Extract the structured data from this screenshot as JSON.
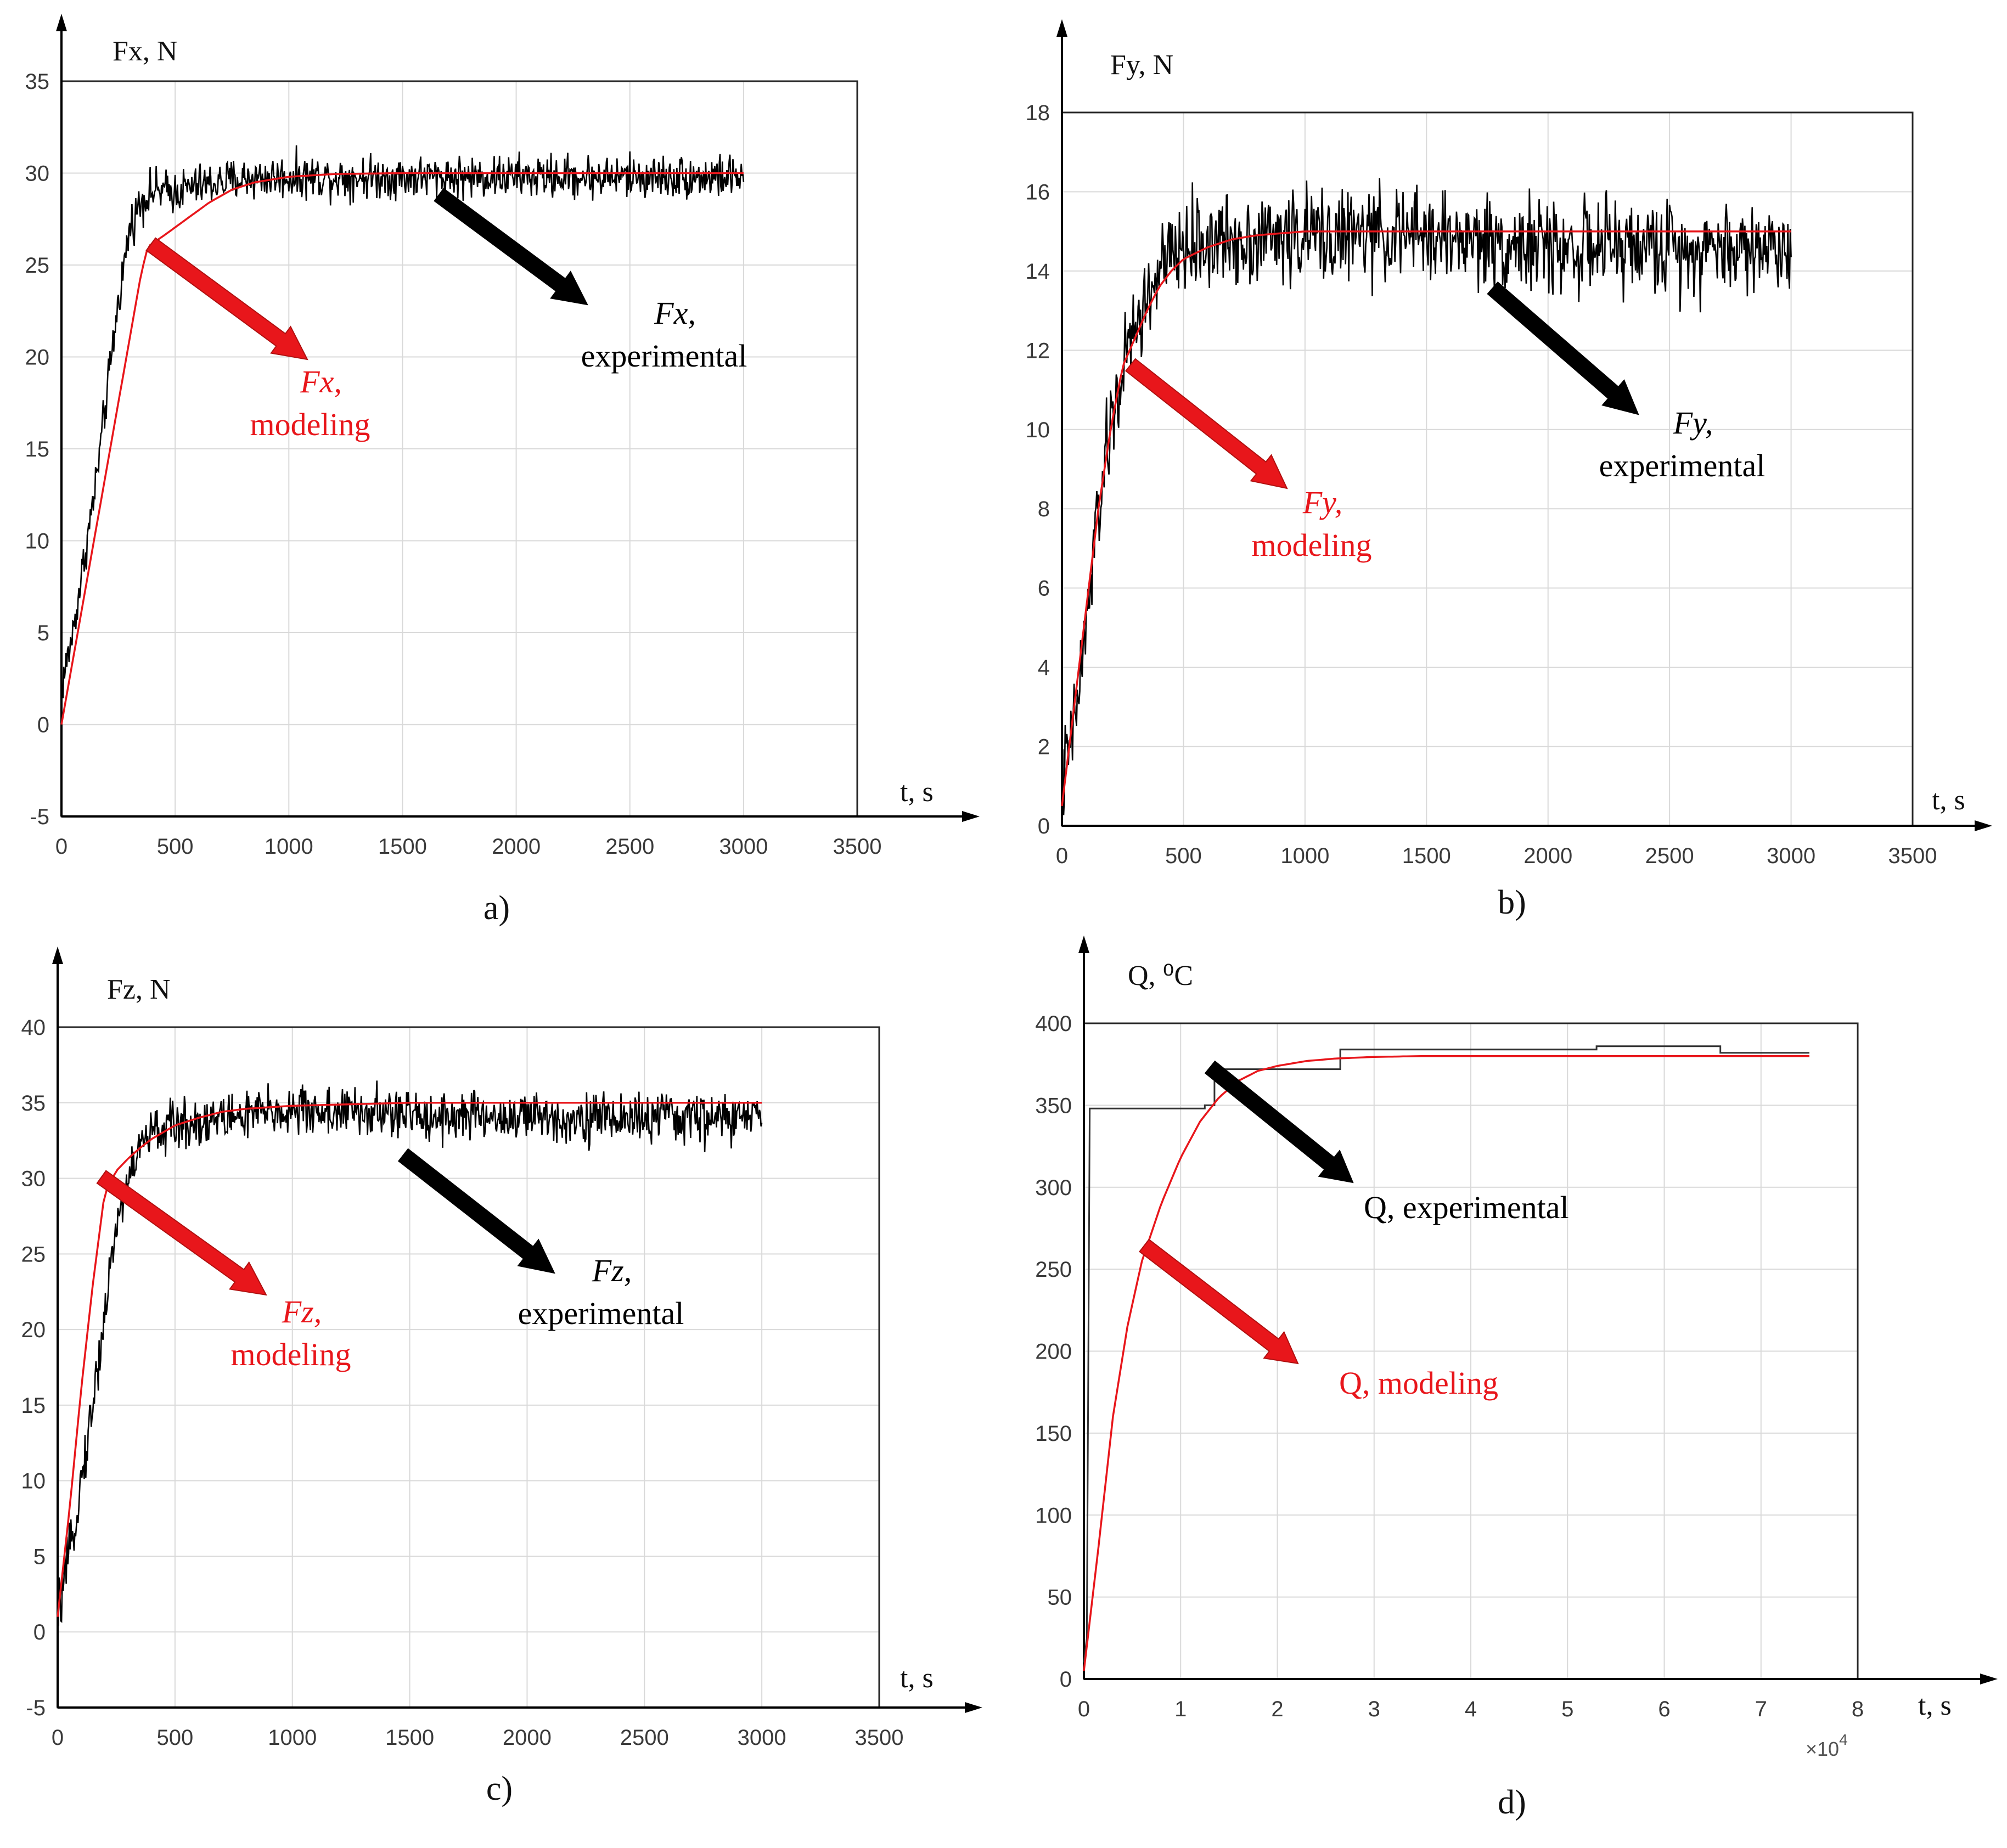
{
  "colors": {
    "experimental": "#000000",
    "modeling": "#e8161b",
    "grid": "#d9d9d9",
    "frame": "#262626",
    "tick_text": "#3a3a3a"
  },
  "chart_data": [
    {
      "panel": "a)",
      "type": "line",
      "ylabel": "Fx, N",
      "xlabel": "t, s",
      "xlim": [
        0,
        3500
      ],
      "ylim": [
        -5,
        35
      ],
      "xticks": [
        0,
        500,
        1000,
        1500,
        2000,
        2500,
        3000,
        3500
      ],
      "yticks": [
        -5,
        0,
        5,
        10,
        15,
        20,
        25,
        30,
        35
      ],
      "grid": true,
      "series": [
        {
          "name": "Fx, experimental",
          "kind": "noisy",
          "x": [
            0,
            50,
            100,
            150,
            200,
            250,
            300,
            350,
            400,
            500,
            600,
            700,
            800,
            1000,
            1500,
            2000,
            2500,
            3000
          ],
          "y": [
            2,
            5,
            9,
            13,
            18,
            23,
            27,
            28.5,
            29,
            29,
            29.3,
            29.5,
            29.7,
            29.8,
            29.8,
            29.8,
            29.8,
            29.8
          ],
          "noise": 0.9
        },
        {
          "name": "Fx, modeling",
          "kind": "smooth",
          "x": [
            0,
            50,
            100,
            150,
            200,
            250,
            300,
            350,
            380,
            450,
            550,
            650,
            750,
            850,
            1000,
            1200,
            1500,
            2000,
            2500,
            3000
          ],
          "y": [
            0,
            3.5,
            7,
            10.5,
            14,
            17.5,
            21,
            24.5,
            26,
            26.6,
            27.5,
            28.4,
            29.1,
            29.5,
            29.8,
            29.95,
            30,
            30,
            30,
            30
          ]
        }
      ],
      "annotations": [
        {
          "lines": [
            "Fx,",
            "experimental"
          ],
          "italic_first": true,
          "color": "#000000"
        },
        {
          "lines": [
            "Fx,",
            "modeling"
          ],
          "italic_first": true,
          "color": "#e8161b"
        }
      ],
      "caption": "a)"
    },
    {
      "panel": "b)",
      "type": "line",
      "ylabel": "Fy, N",
      "xlabel": "t, s",
      "xlim": [
        0,
        3500
      ],
      "ylim": [
        0,
        18
      ],
      "xticks": [
        0,
        500,
        1000,
        1500,
        2000,
        2500,
        3000,
        3500
      ],
      "yticks": [
        0,
        2,
        4,
        6,
        8,
        10,
        12,
        14,
        16,
        18
      ],
      "grid": true,
      "series": [
        {
          "name": "Fy, experimental",
          "kind": "noisy",
          "x": [
            0,
            50,
            100,
            150,
            200,
            250,
            300,
            400,
            500,
            700,
            1000,
            1500,
            2000,
            2500,
            3000
          ],
          "y": [
            1,
            2.5,
            5,
            8,
            10,
            11.5,
            12.5,
            14,
            14.6,
            14.8,
            14.9,
            14.9,
            14.6,
            14.6,
            14.6
          ],
          "noise": 0.9
        },
        {
          "name": "Fy, modeling",
          "kind": "smooth",
          "x": [
            0,
            50,
            100,
            150,
            200,
            250,
            300,
            350,
            400,
            450,
            500,
            600,
            700,
            800,
            1000,
            1500,
            2000,
            2500,
            3000
          ],
          "y": [
            0.5,
            3,
            5.5,
            8,
            10,
            11.6,
            12.3,
            13,
            13.6,
            14,
            14.3,
            14.6,
            14.8,
            14.9,
            15,
            15,
            15,
            15,
            15
          ]
        }
      ],
      "annotations": [
        {
          "lines": [
            "Fy,",
            "experimental"
          ],
          "italic_first": true,
          "color": "#000000"
        },
        {
          "lines": [
            "Fy,",
            "modeling"
          ],
          "italic_first": true,
          "color": "#e8161b"
        }
      ],
      "caption": "b)"
    },
    {
      "panel": "c)",
      "type": "line",
      "ylabel": "Fz, N",
      "xlabel": "t, s",
      "xlim": [
        0,
        3500
      ],
      "ylim": [
        -5,
        40
      ],
      "xticks": [
        0,
        500,
        1000,
        1500,
        2000,
        2500,
        3000,
        3500
      ],
      "yticks": [
        -5,
        0,
        5,
        10,
        15,
        20,
        25,
        30,
        35,
        40
      ],
      "grid": true,
      "series": [
        {
          "name": "Fz, experimental",
          "kind": "noisy",
          "x": [
            0,
            50,
            100,
            150,
            200,
            250,
            300,
            350,
            400,
            500,
            700,
            1000,
            1500,
            2000,
            2500,
            3000
          ],
          "y": [
            1,
            5,
            10,
            15,
            21,
            27,
            30,
            32,
            33,
            33.5,
            34,
            34.5,
            34.2,
            34,
            34,
            34
          ],
          "noise": 1.3
        },
        {
          "name": "Fz, modeling",
          "kind": "smooth",
          "x": [
            0,
            50,
            100,
            150,
            200,
            250,
            300,
            350,
            400,
            500,
            600,
            700,
            800,
            1000,
            1500,
            2000,
            2500,
            3000
          ],
          "y": [
            1,
            8,
            16,
            23,
            29,
            30.5,
            31.3,
            32,
            32.6,
            33.5,
            34,
            34.4,
            34.6,
            34.8,
            35,
            35,
            35,
            35
          ]
        }
      ],
      "annotations": [
        {
          "lines": [
            "Fz,",
            "experimental"
          ],
          "italic_first": true,
          "color": "#000000"
        },
        {
          "lines": [
            "Fz,",
            "modeling"
          ],
          "italic_first": true,
          "color": "#e8161b"
        }
      ],
      "caption": "c)"
    },
    {
      "panel": "d)",
      "type": "line",
      "ylabel": "Q, ⁰C",
      "xlabel": "t, s",
      "xlim": [
        0,
        80000
      ],
      "ylim": [
        0,
        400
      ],
      "xticks": [
        0,
        10000,
        20000,
        30000,
        40000,
        50000,
        60000,
        70000,
        80000
      ],
      "xtick_labels": [
        "0",
        "1",
        "2",
        "3",
        "4",
        "5",
        "6",
        "7",
        "8"
      ],
      "x_multiplier_label": "×10",
      "x_multiplier_exponent": "4",
      "yticks": [
        0,
        50,
        100,
        150,
        200,
        250,
        300,
        350,
        400
      ],
      "grid": true,
      "series": [
        {
          "name": "Q, experimental",
          "kind": "step",
          "x": [
            0,
            300,
            600,
            12500,
            12500,
            13500,
            13500,
            26500,
            26500,
            53000,
            53000,
            65800,
            65800,
            75000
          ],
          "y": [
            10,
            25,
            348,
            348,
            350,
            350,
            372,
            372,
            384,
            384,
            386,
            386,
            382,
            382
          ]
        },
        {
          "name": "Q, modeling",
          "kind": "smooth",
          "x": [
            0,
            1500,
            3000,
            4500,
            6000,
            8000,
            10000,
            12000,
            14000,
            16000,
            18000,
            20000,
            23000,
            26000,
            30000,
            35000,
            40000,
            50000,
            60000,
            70000,
            75000
          ],
          "y": [
            5,
            80,
            160,
            215,
            255,
            290,
            318,
            340,
            355,
            365,
            371,
            374,
            377,
            378.5,
            379.5,
            380,
            380,
            380,
            380,
            380,
            380
          ]
        }
      ],
      "annotations": [
        {
          "lines": [
            "Q, experimental"
          ],
          "italic_first": false,
          "color": "#000000"
        },
        {
          "lines": [
            "Q, modeling"
          ],
          "italic_first": false,
          "color": "#e8161b"
        }
      ],
      "caption": "d)"
    }
  ]
}
